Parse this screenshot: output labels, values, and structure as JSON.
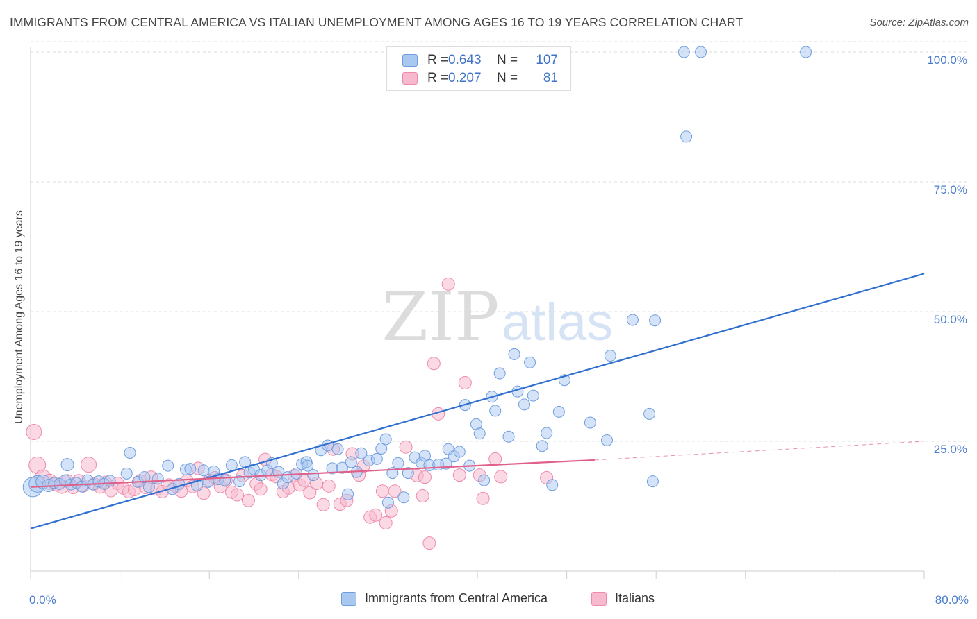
{
  "title": "IMMIGRANTS FROM CENTRAL AMERICA VS ITALIAN UNEMPLOYMENT AMONG AGES 16 TO 19 YEARS CORRELATION CHART",
  "source": "Source: ZipAtlas.com",
  "watermark": {
    "zip": "ZIP",
    "atlas": "atlas"
  },
  "stats": {
    "blue": {
      "r_label": "R =",
      "r_value": "0.643",
      "n_label": "N =",
      "n_value": "107"
    },
    "pink": {
      "r_label": "R =",
      "r_value": "0.207",
      "n_label": "N =",
      "n_value": "81"
    }
  },
  "colors": {
    "blue_fill": "#a9c8f0",
    "blue_stroke": "#6f9ee0",
    "blue_line": "#2f6fd0",
    "pink_fill": "#f7b9cd",
    "pink_stroke": "#ee8aaa",
    "pink_line": "#e0608a",
    "axis_text": "#4a7ccc",
    "grid": "#dddddd"
  },
  "chart_data": {
    "type": "scatter",
    "title": "IMMIGRANTS FROM CENTRAL AMERICA VS ITALIAN UNEMPLOYMENT AMONG AGES 16 TO 19 YEARS CORRELATION CHART",
    "xlabel": "",
    "ylabel": "Unemployment Among Ages 16 to 19 years",
    "xlim": [
      0,
      80
    ],
    "ylim": [
      0,
      102
    ],
    "x_tick_labels": [
      "0.0%",
      "80.0%"
    ],
    "y_ticks": [
      25,
      50,
      75,
      100
    ],
    "y_tick_labels": [
      "25.0%",
      "50.0%",
      "75.0%",
      "100.0%"
    ],
    "grid": "horizontal dashed",
    "legend": "bottom-center",
    "series": [
      {
        "name": "Immigrants from Central America",
        "color": "#a9c8f0",
        "trend": {
          "x": [
            0,
            80
          ],
          "y": [
            8.2,
            57.3
          ]
        },
        "points": [
          [
            0.2,
            16.2,
            14
          ],
          [
            0.6,
            16.8,
            12
          ],
          [
            1.1,
            17.2,
            10
          ],
          [
            1.6,
            16.5,
            9
          ],
          [
            2.1,
            17.0,
            8
          ],
          [
            3.3,
            20.5,
            9
          ],
          [
            2.6,
            16.8,
            8
          ],
          [
            3.1,
            17.5,
            8
          ],
          [
            3.6,
            16.7,
            8
          ],
          [
            4.1,
            17.0,
            8
          ],
          [
            4.6,
            16.3,
            8
          ],
          [
            5.1,
            17.5,
            8
          ],
          [
            5.6,
            16.7,
            8
          ],
          [
            6.1,
            17.3,
            8
          ],
          [
            6.6,
            16.8,
            8
          ],
          [
            7.1,
            17.4,
            8
          ],
          [
            8.6,
            18.8,
            8
          ],
          [
            8.9,
            22.8,
            8
          ],
          [
            9.6,
            17.2,
            8
          ],
          [
            10.2,
            18.1,
            8
          ],
          [
            10.6,
            16.2,
            8
          ],
          [
            11.4,
            17.8,
            8
          ],
          [
            12.3,
            20.3,
            8
          ],
          [
            12.7,
            15.8,
            8
          ],
          [
            13.3,
            16.8,
            8
          ],
          [
            13.9,
            19.6,
            8
          ],
          [
            14.3,
            19.7,
            8
          ],
          [
            14.9,
            16.5,
            8
          ],
          [
            15.5,
            19.4,
            8
          ],
          [
            15.9,
            17.2,
            8
          ],
          [
            16.4,
            19.2,
            8
          ],
          [
            16.8,
            17.7,
            8
          ],
          [
            17.4,
            17.5,
            8
          ],
          [
            18.0,
            20.4,
            8
          ],
          [
            18.7,
            17.3,
            8
          ],
          [
            19.2,
            21.0,
            8
          ],
          [
            19.6,
            19.0,
            8
          ],
          [
            20.0,
            19.6,
            8
          ],
          [
            20.6,
            18.5,
            8
          ],
          [
            21.2,
            19.4,
            8
          ],
          [
            21.6,
            20.8,
            8
          ],
          [
            22.2,
            19.1,
            8
          ],
          [
            22.6,
            16.9,
            8
          ],
          [
            23.0,
            18.1,
            8
          ],
          [
            23.8,
            18.8,
            8
          ],
          [
            24.3,
            20.6,
            8
          ],
          [
            24.7,
            21.0,
            8
          ],
          [
            25.3,
            18.5,
            8
          ],
          [
            24.8,
            20.3,
            8
          ],
          [
            26.0,
            23.3,
            8
          ],
          [
            26.6,
            24.2,
            8
          ],
          [
            27.0,
            19.8,
            8
          ],
          [
            27.5,
            23.5,
            8
          ],
          [
            27.9,
            19.9,
            8
          ],
          [
            28.4,
            14.8,
            8
          ],
          [
            28.7,
            21.0,
            8
          ],
          [
            29.2,
            19.1,
            8
          ],
          [
            29.6,
            22.7,
            8
          ],
          [
            30.3,
            21.3,
            8
          ],
          [
            31.0,
            21.6,
            8
          ],
          [
            31.4,
            23.6,
            8
          ],
          [
            31.8,
            25.4,
            8
          ],
          [
            32.0,
            13.2,
            8
          ],
          [
            32.4,
            18.9,
            8
          ],
          [
            32.9,
            20.8,
            8
          ],
          [
            33.4,
            14.2,
            8
          ],
          [
            33.8,
            18.9,
            8
          ],
          [
            34.4,
            21.9,
            8
          ],
          [
            35.0,
            20.8,
            8
          ],
          [
            35.3,
            22.2,
            8
          ],
          [
            35.7,
            20.4,
            8
          ],
          [
            36.5,
            20.5,
            8
          ],
          [
            37.2,
            20.7,
            8
          ],
          [
            37.4,
            23.5,
            8
          ],
          [
            37.9,
            22.1,
            8
          ],
          [
            38.4,
            23.0,
            8
          ],
          [
            38.9,
            32.0,
            8
          ],
          [
            39.3,
            20.3,
            8
          ],
          [
            39.9,
            28.3,
            8
          ],
          [
            40.2,
            26.5,
            8
          ],
          [
            40.6,
            17.5,
            8
          ],
          [
            41.3,
            33.6,
            8
          ],
          [
            41.6,
            30.9,
            8
          ],
          [
            42.0,
            38.1,
            8
          ],
          [
            42.8,
            25.9,
            8
          ],
          [
            43.3,
            41.8,
            8
          ],
          [
            43.6,
            34.6,
            8
          ],
          [
            44.2,
            32.1,
            8
          ],
          [
            44.7,
            40.2,
            8
          ],
          [
            45.0,
            33.8,
            8
          ],
          [
            45.8,
            24.1,
            8
          ],
          [
            46.2,
            26.6,
            8
          ],
          [
            46.7,
            16.6,
            8
          ],
          [
            47.3,
            30.7,
            8
          ],
          [
            47.8,
            36.8,
            8
          ],
          [
            50.1,
            28.6,
            8
          ],
          [
            51.6,
            25.2,
            8
          ],
          [
            51.9,
            41.5,
            8
          ],
          [
            53.9,
            48.4,
            8
          ],
          [
            55.4,
            30.3,
            8
          ],
          [
            55.9,
            48.3,
            8
          ],
          [
            55.7,
            17.3,
            8
          ],
          [
            58.5,
            100,
            8
          ],
          [
            58.7,
            83.7,
            8
          ],
          [
            60.0,
            100,
            8
          ],
          [
            69.4,
            100,
            8
          ]
        ]
      },
      {
        "name": "Italians",
        "color": "#f7b9cd",
        "trend": {
          "x": [
            0,
            50.5
          ],
          "y": [
            16.2,
            21.4
          ]
        },
        "trend_extension": {
          "x": [
            50.5,
            80
          ],
          "y": [
            21.4,
            25.0
          ]
        },
        "points": [
          [
            0.3,
            26.8,
            11
          ],
          [
            0.6,
            20.4,
            12
          ],
          [
            1.1,
            17.9,
            12
          ],
          [
            1.7,
            17.2,
            11
          ],
          [
            2.3,
            16.8,
            10
          ],
          [
            2.8,
            16.3,
            10
          ],
          [
            3.3,
            17.4,
            9
          ],
          [
            3.8,
            16.1,
            9
          ],
          [
            4.3,
            17.4,
            9
          ],
          [
            4.7,
            16.4,
            9
          ],
          [
            5.2,
            20.5,
            11
          ],
          [
            5.7,
            16.8,
            9
          ],
          [
            6.2,
            16.2,
            9
          ],
          [
            6.7,
            17.1,
            9
          ],
          [
            7.2,
            15.5,
            9
          ],
          [
            7.8,
            16.9,
            9
          ],
          [
            8.3,
            16.0,
            9
          ],
          [
            8.8,
            15.3,
            9
          ],
          [
            9.3,
            15.7,
            9
          ],
          [
            9.8,
            17.4,
            9
          ],
          [
            10.3,
            16.1,
            9
          ],
          [
            10.8,
            18.1,
            9
          ],
          [
            11.3,
            15.8,
            9
          ],
          [
            11.8,
            15.3,
            9
          ],
          [
            12.4,
            16.6,
            9
          ],
          [
            13.0,
            16.3,
            9
          ],
          [
            13.5,
            15.4,
            9
          ],
          [
            14.0,
            17.4,
            9
          ],
          [
            14.5,
            16.3,
            9
          ],
          [
            15.0,
            19.8,
            9
          ],
          [
            15.5,
            15.0,
            9
          ],
          [
            16.0,
            17.5,
            9
          ],
          [
            16.5,
            18.0,
            9
          ],
          [
            17.0,
            16.3,
            9
          ],
          [
            17.5,
            17.5,
            9
          ],
          [
            18.0,
            15.2,
            9
          ],
          [
            18.5,
            14.7,
            9
          ],
          [
            19.0,
            18.4,
            9
          ],
          [
            19.5,
            13.6,
            9
          ],
          [
            20.2,
            16.8,
            9
          ],
          [
            20.6,
            15.8,
            9
          ],
          [
            21.0,
            21.5,
            9
          ],
          [
            21.6,
            18.6,
            9
          ],
          [
            22.0,
            18.2,
            9
          ],
          [
            22.6,
            15.3,
            9
          ],
          [
            23.1,
            16.0,
            9
          ],
          [
            23.6,
            18.4,
            9
          ],
          [
            24.1,
            16.6,
            9
          ],
          [
            24.5,
            17.5,
            9
          ],
          [
            25.0,
            15.1,
            9
          ],
          [
            25.6,
            16.9,
            9
          ],
          [
            26.2,
            12.8,
            9
          ],
          [
            26.7,
            16.4,
            9
          ],
          [
            27.1,
            23.5,
            9
          ],
          [
            27.7,
            12.9,
            9
          ],
          [
            28.3,
            13.6,
            9
          ],
          [
            28.8,
            22.6,
            9
          ],
          [
            29.4,
            18.5,
            9
          ],
          [
            29.8,
            20.2,
            9
          ],
          [
            30.4,
            10.4,
            9
          ],
          [
            30.9,
            10.8,
            9
          ],
          [
            31.5,
            15.4,
            9
          ],
          [
            31.8,
            9.3,
            9
          ],
          [
            32.3,
            11.6,
            9
          ],
          [
            32.6,
            15.4,
            9
          ],
          [
            33.6,
            23.9,
            9
          ],
          [
            34.6,
            18.4,
            9
          ],
          [
            35.1,
            14.5,
            9
          ],
          [
            35.3,
            18.1,
            9
          ],
          [
            35.7,
            5.4,
            9
          ],
          [
            36.1,
            40.0,
            9
          ],
          [
            36.5,
            30.3,
            9
          ],
          [
            37.4,
            55.3,
            9
          ],
          [
            38.4,
            18.5,
            9
          ],
          [
            38.9,
            36.3,
            9
          ],
          [
            40.2,
            18.5,
            9
          ],
          [
            40.5,
            14.0,
            9
          ],
          [
            41.6,
            21.6,
            9
          ],
          [
            42.1,
            18.2,
            9
          ],
          [
            46.2,
            18.0,
            9
          ]
        ]
      }
    ]
  }
}
